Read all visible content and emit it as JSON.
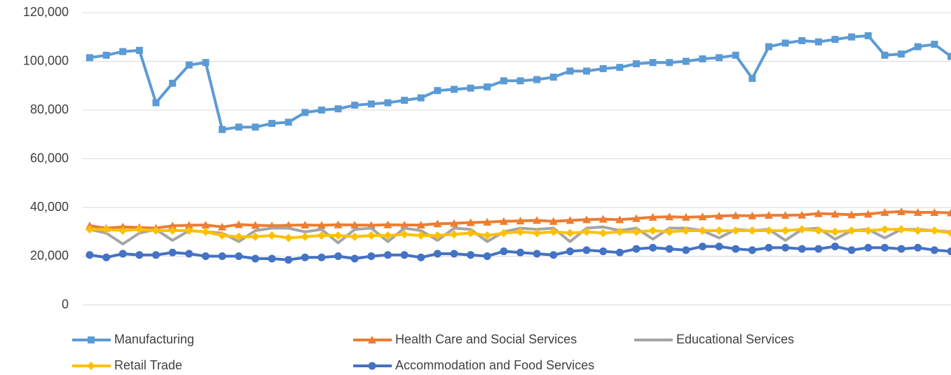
{
  "chart_data": {
    "type": "line",
    "categories": [
      null,
      null,
      null,
      null,
      null,
      null,
      null,
      null,
      null,
      null,
      null,
      null,
      null,
      null,
      null,
      null,
      null,
      null,
      null,
      null,
      null,
      null,
      null,
      null,
      null,
      null,
      null,
      null,
      null,
      null,
      null,
      null,
      null,
      null,
      null,
      null,
      null,
      null,
      null,
      null,
      null,
      null,
      null,
      null,
      null,
      null,
      null,
      null,
      null,
      null,
      null,
      null,
      null
    ],
    "ylim": [
      0,
      120000
    ],
    "yticks": [
      {
        "value": 0,
        "label": "0"
      },
      {
        "value": 20000,
        "label": "20,000"
      },
      {
        "value": 40000,
        "label": "40,000"
      },
      {
        "value": 60000,
        "label": "60,000"
      },
      {
        "value": 80000,
        "label": "80,000"
      },
      {
        "value": 100000,
        "label": "100,000"
      },
      {
        "value": 120000,
        "label": "120,000"
      }
    ],
    "grid": true,
    "legend": "bottom",
    "series": [
      {
        "name": "Manufacturing",
        "color": "#5b9bd5",
        "marker": "square",
        "values": [
          101500,
          102500,
          104000,
          104500,
          83000,
          91000,
          98500,
          99500,
          72000,
          73000,
          73000,
          74500,
          75000,
          79000,
          80000,
          80500,
          82000,
          82500,
          83000,
          84000,
          85000,
          88000,
          88500,
          89000,
          89500,
          92000,
          92000,
          92500,
          93500,
          96000,
          96000,
          97000,
          97500,
          99000,
          99500,
          99500,
          100000,
          101000,
          101500,
          102500,
          93000,
          106000,
          107500,
          108500,
          108000,
          109000,
          110000,
          110500,
          102500,
          103000,
          106000,
          107000,
          102000
        ]
      },
      {
        "name": "Health Care and Social Services",
        "color": "#ed7d31",
        "marker": "triangle",
        "values": [
          32500,
          31500,
          32000,
          31800,
          31500,
          32500,
          32700,
          32800,
          32000,
          33000,
          32700,
          32500,
          32700,
          32800,
          32700,
          32900,
          32800,
          32700,
          32900,
          32800,
          32800,
          33300,
          33500,
          33800,
          34000,
          34300,
          34500,
          34700,
          34300,
          34700,
          35000,
          35200,
          35000,
          35500,
          36000,
          36200,
          36000,
          36200,
          36500,
          36700,
          36600,
          36800,
          36800,
          36900,
          37500,
          37300,
          37000,
          37300,
          38000,
          38300,
          38000,
          38000,
          37800
        ]
      },
      {
        "name": "Educational Services",
        "color": "#a5a5a5",
        "marker": "none",
        "values": [
          31000,
          29500,
          25000,
          29500,
          31000,
          26500,
          30500,
          30000,
          29500,
          26000,
          30500,
          31500,
          31500,
          30000,
          31000,
          25500,
          31000,
          31500,
          26000,
          31500,
          30500,
          26500,
          31500,
          31000,
          26000,
          30000,
          31500,
          31000,
          31500,
          26000,
          31500,
          32000,
          30500,
          31500,
          27000,
          31500,
          31500,
          30500,
          27500,
          31000,
          30500,
          31000,
          26500,
          31000,
          31500,
          27000,
          30500,
          31000,
          27500,
          31000,
          31000,
          30500,
          30000
        ]
      },
      {
        "name": "Retail Trade",
        "color": "#ffc000",
        "marker": "diamond",
        "values": [
          31000,
          31000,
          30500,
          31000,
          30500,
          30500,
          30500,
          30000,
          28500,
          28000,
          28000,
          28500,
          27500,
          28000,
          28500,
          28500,
          28000,
          28500,
          28500,
          29000,
          28500,
          28500,
          29000,
          29500,
          28500,
          29500,
          30000,
          29500,
          30000,
          29500,
          30000,
          29500,
          30000,
          30000,
          30500,
          30000,
          30500,
          30500,
          30500,
          30500,
          30500,
          30500,
          30500,
          31000,
          30500,
          30000,
          30500,
          30500,
          31000,
          31000,
          30500,
          30500,
          29500
        ]
      },
      {
        "name": "Accommodation and Food Services",
        "color": "#4472c4",
        "marker": "circle",
        "values": [
          20500,
          19500,
          21000,
          20500,
          20500,
          21500,
          21000,
          20000,
          20000,
          20000,
          19000,
          19000,
          18500,
          19500,
          19500,
          20000,
          19000,
          20000,
          20500,
          20500,
          19500,
          21000,
          21000,
          20500,
          20000,
          22000,
          21500,
          21000,
          20500,
          22000,
          22500,
          22000,
          21500,
          23000,
          23500,
          23000,
          22500,
          24000,
          24000,
          23000,
          22500,
          23500,
          23500,
          23000,
          23000,
          24000,
          22500,
          23500,
          23500,
          23000,
          23500,
          22500,
          22000
        ]
      }
    ]
  }
}
